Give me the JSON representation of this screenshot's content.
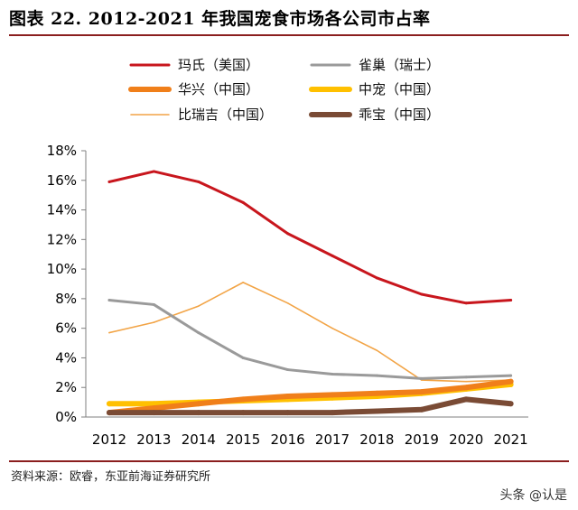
{
  "title": "图表 22. 2012-2021 年我国宠食市场各公司市占率",
  "source": "资料来源：欧睿，东亚前海证券研究所",
  "watermark": "头条 @认是",
  "chart_data": {
    "type": "line",
    "x": [
      "2012",
      "2013",
      "2014",
      "2015",
      "2016",
      "2017",
      "2018",
      "2019",
      "2020",
      "2021"
    ],
    "ylim": [
      0,
      18
    ],
    "yticks": [
      "0%",
      "2%",
      "4%",
      "6%",
      "8%",
      "10%",
      "12%",
      "14%",
      "16%",
      "18%"
    ],
    "grid": false,
    "legend_position": "top",
    "series": [
      {
        "name": "玛氏（美国）",
        "color": "#c8161d",
        "values": [
          15.9,
          16.6,
          15.9,
          14.5,
          12.4,
          10.9,
          9.4,
          8.3,
          7.7,
          7.9
        ]
      },
      {
        "name": "雀巢（瑞士）",
        "color": "#9a9a9a",
        "values": [
          7.9,
          7.6,
          5.7,
          4.0,
          3.2,
          2.9,
          2.8,
          2.6,
          2.7,
          2.8
        ]
      },
      {
        "name": "华兴（中国）",
        "color": "#f07f1a",
        "values": [
          0.3,
          0.6,
          0.9,
          1.2,
          1.4,
          1.5,
          1.6,
          1.7,
          2.0,
          2.4
        ]
      },
      {
        "name": "中宠（中国）",
        "color": "#ffc000",
        "values": [
          0.9,
          0.9,
          1.0,
          1.1,
          1.2,
          1.3,
          1.4,
          1.6,
          1.9,
          2.2
        ]
      },
      {
        "name": "比瑞吉（中国）",
        "color": "#f2a446",
        "values": [
          5.7,
          6.4,
          7.5,
          9.1,
          7.7,
          6.0,
          4.5,
          2.5,
          2.4,
          2.5
        ]
      },
      {
        "name": "乖宝（中国）",
        "color": "#7a4b35",
        "values": [
          0.3,
          0.3,
          0.3,
          0.3,
          0.3,
          0.3,
          0.4,
          0.5,
          1.2,
          0.9
        ]
      }
    ]
  }
}
